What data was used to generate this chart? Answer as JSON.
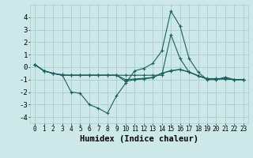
{
  "xlabel": "Humidex (Indice chaleur)",
  "bg_color": "#cce8e8",
  "grid_color": "#aacccc",
  "line_color": "#1a6060",
  "xlim": [
    -0.5,
    23.5
  ],
  "ylim": [
    -4.5,
    5.0
  ],
  "yticks": [
    -4,
    -3,
    -2,
    -1,
    0,
    1,
    2,
    3,
    4
  ],
  "xticks": [
    0,
    1,
    2,
    3,
    4,
    5,
    6,
    7,
    8,
    9,
    10,
    11,
    12,
    13,
    14,
    15,
    16,
    17,
    18,
    19,
    20,
    21,
    22,
    23
  ],
  "lines": [
    {
      "x": [
        0,
        1,
        2,
        3,
        4,
        5,
        6,
        7,
        8,
        9,
        10,
        11,
        12,
        13,
        14,
        15,
        16,
        17,
        18,
        19,
        20,
        21,
        22,
        23
      ],
      "y": [
        0.2,
        -0.3,
        -0.5,
        -0.6,
        -2.0,
        -2.1,
        -3.0,
        -3.3,
        -3.7,
        -2.3,
        -1.3,
        -0.3,
        -0.1,
        0.3,
        1.3,
        4.5,
        3.3,
        0.7,
        -0.4,
        -1.0,
        -1.0,
        -0.8,
        -1.0,
        -1.0
      ]
    },
    {
      "x": [
        0,
        1,
        2,
        3,
        4,
        5,
        6,
        7,
        8,
        9,
        10,
        11,
        12,
        13,
        14,
        15,
        16,
        17,
        18,
        19,
        20,
        21,
        22,
        23
      ],
      "y": [
        0.2,
        -0.3,
        -0.5,
        -0.65,
        -0.65,
        -0.65,
        -0.65,
        -0.65,
        -0.65,
        -0.65,
        -0.65,
        -0.65,
        -0.65,
        -0.65,
        -0.65,
        2.6,
        0.7,
        -0.4,
        -0.7,
        -0.95,
        -0.95,
        -0.95,
        -1.0,
        -1.0
      ]
    },
    {
      "x": [
        0,
        1,
        2,
        3,
        4,
        5,
        6,
        7,
        8,
        9,
        10,
        11,
        12,
        13,
        14,
        15,
        16,
        17,
        18,
        19,
        20,
        21,
        22,
        23
      ],
      "y": [
        0.2,
        -0.3,
        -0.5,
        -0.65,
        -0.65,
        -0.65,
        -0.65,
        -0.65,
        -0.65,
        -0.65,
        -1.15,
        -1.0,
        -0.95,
        -0.85,
        -0.5,
        -0.3,
        -0.2,
        -0.4,
        -0.7,
        -0.95,
        -0.95,
        -0.95,
        -1.0,
        -1.0
      ]
    },
    {
      "x": [
        0,
        1,
        2,
        3,
        4,
        5,
        6,
        7,
        8,
        9,
        10,
        11,
        12,
        13,
        14,
        15,
        16,
        17,
        18,
        19,
        20,
        21,
        22,
        23
      ],
      "y": [
        0.2,
        -0.3,
        -0.5,
        -0.65,
        -0.65,
        -0.65,
        -0.65,
        -0.65,
        -0.65,
        -0.65,
        -1.0,
        -0.95,
        -0.9,
        -0.82,
        -0.48,
        -0.28,
        -0.18,
        -0.38,
        -0.68,
        -0.92,
        -0.92,
        -0.92,
        -1.0,
        -1.0
      ]
    }
  ]
}
